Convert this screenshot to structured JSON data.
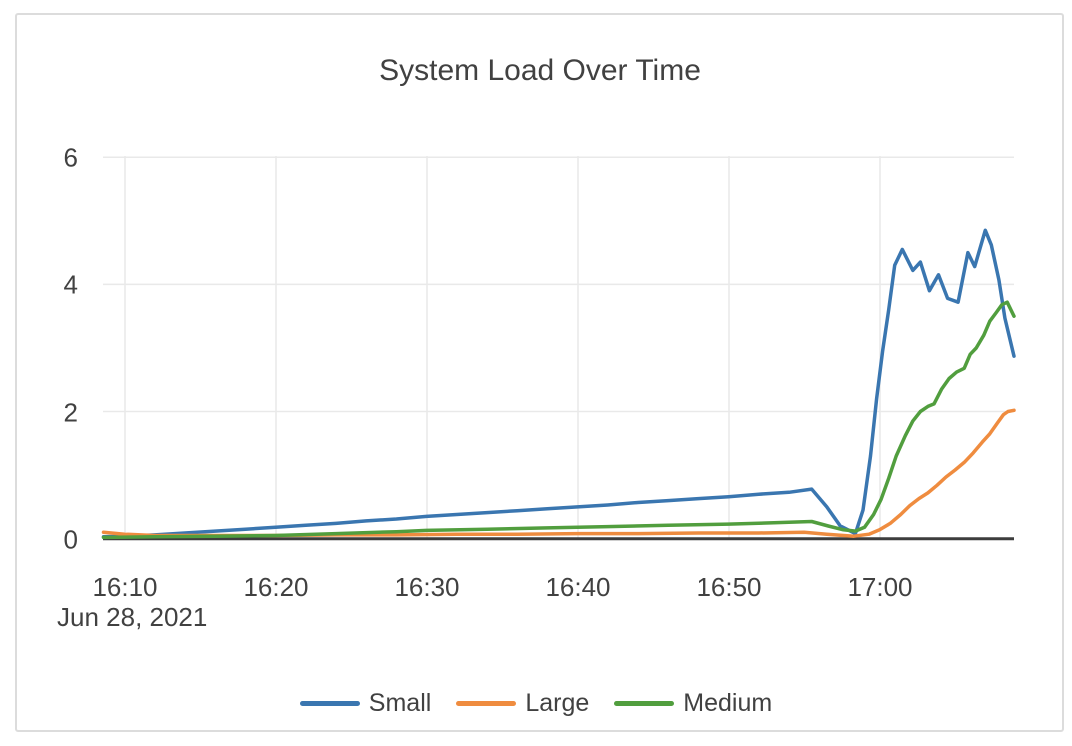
{
  "card": {
    "background": "#ffffff",
    "border_color": "#dcdcdc"
  },
  "chart_data": {
    "type": "line",
    "title": "System Load Over Time",
    "x_axis_date": "Jun 28, 2021",
    "x_tick_labels": [
      "16:10",
      "16:20",
      "16:30",
      "16:40",
      "16:50",
      "17:00"
    ],
    "x_ticks_minutes": [
      10,
      20,
      30,
      40,
      50,
      60
    ],
    "y_tick_labels": [
      "6",
      "4",
      "2",
      "0"
    ],
    "y_tick_values": [
      6,
      4,
      2,
      0
    ],
    "x_domain_minutes": [
      8.57,
      68.9
    ],
    "y_domain": [
      0,
      6
    ],
    "grid": true,
    "legend_position": "bottom",
    "colors": {
      "grid": "#e9e9e9",
      "axis": "#3d3d3d",
      "text": "#414141"
    },
    "series": [
      {
        "name": "Small",
        "color": "#3a76b0",
        "points": [
          [
            8.6,
            0.03
          ],
          [
            10,
            0.04
          ],
          [
            12,
            0.06
          ],
          [
            14,
            0.09
          ],
          [
            16,
            0.12
          ],
          [
            18,
            0.15
          ],
          [
            20,
            0.18
          ],
          [
            22,
            0.21
          ],
          [
            24,
            0.24
          ],
          [
            26,
            0.28
          ],
          [
            28,
            0.31
          ],
          [
            30,
            0.35
          ],
          [
            32,
            0.38
          ],
          [
            34,
            0.41
          ],
          [
            36,
            0.44
          ],
          [
            38,
            0.47
          ],
          [
            40,
            0.5
          ],
          [
            42,
            0.53
          ],
          [
            44,
            0.57
          ],
          [
            46,
            0.6
          ],
          [
            48,
            0.63
          ],
          [
            50,
            0.66
          ],
          [
            52,
            0.7
          ],
          [
            54,
            0.73
          ],
          [
            55.5,
            0.78
          ],
          [
            56.5,
            0.5
          ],
          [
            57.4,
            0.2
          ],
          [
            58.4,
            0.08
          ],
          [
            58.9,
            0.45
          ],
          [
            59.4,
            1.3
          ],
          [
            59.8,
            2.2
          ],
          [
            60.2,
            2.95
          ],
          [
            60.6,
            3.6
          ],
          [
            61.0,
            4.3
          ],
          [
            61.5,
            4.55
          ],
          [
            62.2,
            4.22
          ],
          [
            62.7,
            4.35
          ],
          [
            63.3,
            3.9
          ],
          [
            63.9,
            4.15
          ],
          [
            64.5,
            3.78
          ],
          [
            65.2,
            3.72
          ],
          [
            65.85,
            4.5
          ],
          [
            66.3,
            4.28
          ],
          [
            67.0,
            4.85
          ],
          [
            67.4,
            4.62
          ],
          [
            67.9,
            4.07
          ],
          [
            68.3,
            3.47
          ],
          [
            68.9,
            2.87
          ]
        ]
      },
      {
        "name": "Large",
        "color": "#ef8c3f",
        "points": [
          [
            8.6,
            0.1
          ],
          [
            10,
            0.07
          ],
          [
            12,
            0.05
          ],
          [
            16,
            0.05
          ],
          [
            20,
            0.05
          ],
          [
            24,
            0.06
          ],
          [
            28,
            0.06
          ],
          [
            32,
            0.07
          ],
          [
            36,
            0.07
          ],
          [
            40,
            0.08
          ],
          [
            44,
            0.08
          ],
          [
            48,
            0.09
          ],
          [
            52,
            0.09
          ],
          [
            55,
            0.1
          ],
          [
            56.5,
            0.07
          ],
          [
            58.3,
            0.04
          ],
          [
            59.3,
            0.07
          ],
          [
            60.0,
            0.14
          ],
          [
            60.7,
            0.24
          ],
          [
            61.4,
            0.38
          ],
          [
            62.0,
            0.52
          ],
          [
            62.6,
            0.63
          ],
          [
            63.2,
            0.72
          ],
          [
            63.8,
            0.84
          ],
          [
            64.4,
            0.97
          ],
          [
            65.0,
            1.08
          ],
          [
            65.6,
            1.2
          ],
          [
            66.2,
            1.35
          ],
          [
            66.8,
            1.52
          ],
          [
            67.3,
            1.65
          ],
          [
            67.8,
            1.82
          ],
          [
            68.2,
            1.95
          ],
          [
            68.5,
            2.0
          ],
          [
            68.9,
            2.02
          ]
        ]
      },
      {
        "name": "Medium",
        "color": "#519e3e",
        "points": [
          [
            8.6,
            0.02
          ],
          [
            12,
            0.03
          ],
          [
            16,
            0.04
          ],
          [
            20,
            0.05
          ],
          [
            24,
            0.08
          ],
          [
            28,
            0.11
          ],
          [
            30,
            0.13
          ],
          [
            34,
            0.15
          ],
          [
            38,
            0.17
          ],
          [
            42,
            0.19
          ],
          [
            46,
            0.21
          ],
          [
            50,
            0.23
          ],
          [
            53,
            0.25
          ],
          [
            55.5,
            0.27
          ],
          [
            56.6,
            0.2
          ],
          [
            57.6,
            0.14
          ],
          [
            58.4,
            0.12
          ],
          [
            59.0,
            0.18
          ],
          [
            59.6,
            0.38
          ],
          [
            60.1,
            0.62
          ],
          [
            60.6,
            0.95
          ],
          [
            61.1,
            1.3
          ],
          [
            61.7,
            1.62
          ],
          [
            62.2,
            1.85
          ],
          [
            62.7,
            2.0
          ],
          [
            63.2,
            2.08
          ],
          [
            63.6,
            2.12
          ],
          [
            64.1,
            2.35
          ],
          [
            64.6,
            2.52
          ],
          [
            65.1,
            2.62
          ],
          [
            65.6,
            2.68
          ],
          [
            66.0,
            2.9
          ],
          [
            66.4,
            3.0
          ],
          [
            66.9,
            3.2
          ],
          [
            67.3,
            3.42
          ],
          [
            67.7,
            3.55
          ],
          [
            68.1,
            3.68
          ],
          [
            68.45,
            3.72
          ],
          [
            68.9,
            3.5
          ]
        ]
      }
    ]
  }
}
